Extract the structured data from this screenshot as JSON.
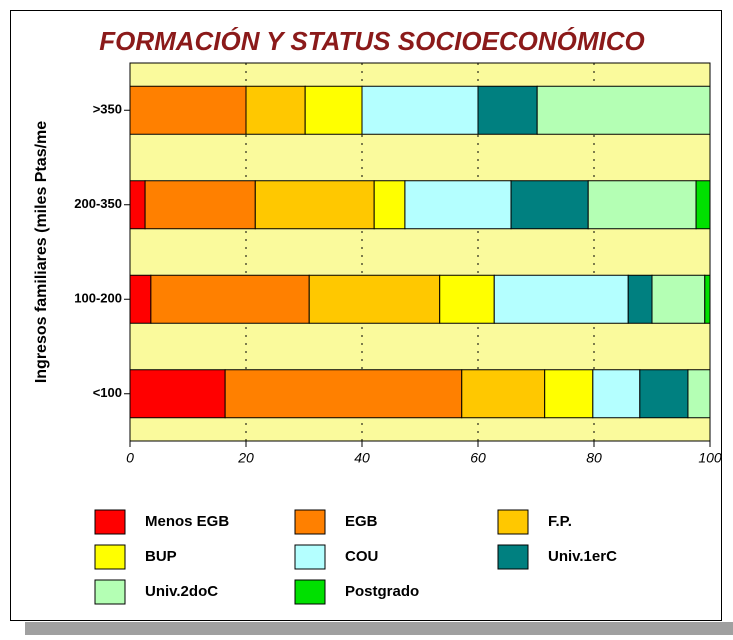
{
  "chart_data": {
    "type": "bar",
    "orientation": "horizontal",
    "stacked": true,
    "title": "FORMACIÓN Y STATUS SOCIOECONÓMICO",
    "y_label": "Ingresos familiares (miles Ptas/me",
    "categories": [
      ">350",
      "200-350",
      "100-200",
      "<100"
    ],
    "series": [
      {
        "name": "Menos EGB",
        "color": "#ff0000",
        "values": [
          0,
          2.6,
          3.6,
          16.4
        ]
      },
      {
        "name": "EGB",
        "color": "#ff8000",
        "values": [
          20,
          19.0,
          27.3,
          40.8
        ]
      },
      {
        "name": "F.P.",
        "color": "#ffc800",
        "values": [
          10.2,
          20.5,
          22.5,
          14.3
        ]
      },
      {
        "name": "BUP",
        "color": "#ffff00",
        "values": [
          9.8,
          5.3,
          9.4,
          8.3
        ]
      },
      {
        "name": "COU",
        "color": "#b4ffff",
        "values": [
          20,
          18.3,
          23.1,
          8.1
        ]
      },
      {
        "name": "Univ.1erC",
        "color": "#008080",
        "values": [
          10.2,
          13.3,
          4.1,
          8.3
        ]
      },
      {
        "name": "Univ.2doC",
        "color": "#b4ffb4",
        "values": [
          29.8,
          18.6,
          9.1,
          3.8
        ]
      },
      {
        "name": "Postgrado",
        "color": "#00e000",
        "values": [
          0,
          2.4,
          0.9,
          0
        ]
      }
    ],
    "xlim": [
      0,
      100
    ],
    "xticks": [
      0,
      20,
      40,
      60,
      80,
      100
    ],
    "grid": true,
    "legend": "bottom",
    "background": "#fafa9c"
  }
}
